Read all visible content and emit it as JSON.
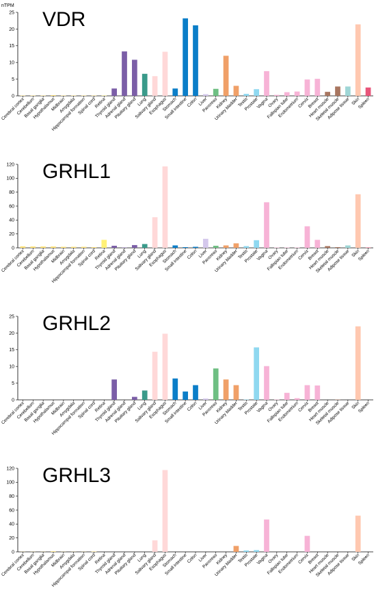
{
  "chart_data": [
    {
      "type": "bar",
      "title": "VDR",
      "ylabel": "nTPM",
      "ylim": [
        0,
        25
      ],
      "yticks": [
        0,
        5,
        10,
        15,
        20,
        25
      ],
      "grid": false,
      "categories": [
        "Cerebral cortex",
        "Cerebellum",
        "Basal ganglia",
        "Hypothalamus",
        "Midbrain",
        "Amygdala",
        "Hippocampal formation",
        "Spinal cord",
        "Retina",
        "Thyroid gland",
        "Adrenal gland",
        "Pituitary gland",
        "Lung",
        "Salivary gland",
        "Esophagus",
        "Stomach",
        "Small intestine",
        "Colon",
        "Liver",
        "Pancreas",
        "Kidney",
        "Urinary bladder",
        "Testis",
        "Prostate",
        "Vagina",
        "Ovary",
        "Fallopian tube",
        "Endometrium",
        "Cervix",
        "Breast",
        "Heart muscle",
        "Skeletal muscle",
        "Adipose tissue",
        "Skin",
        "Spleen"
      ],
      "values": [
        0.1,
        0.1,
        0.1,
        0.2,
        0.1,
        0.1,
        0.1,
        0.1,
        0.1,
        2.2,
        13.3,
        10.8,
        6.6,
        5.9,
        13.2,
        2.2,
        23.2,
        21.1,
        0.5,
        2.1,
        12.0,
        3.0,
        0.6,
        2.0,
        7.4,
        0.3,
        1.1,
        1.3,
        4.9,
        5.1,
        1.2,
        2.8,
        2.8,
        21.4,
        2.5
      ],
      "colors": [
        "#ffe27a",
        "#ffe27a",
        "#ffe27a",
        "#ffe27a",
        "#ffe27a",
        "#ffe27a",
        "#ffe27a",
        "#ffe27a",
        "#fff176",
        "#7b5ea7",
        "#7b5ea7",
        "#7b5ea7",
        "#3a9a8a",
        "#ffd8d8",
        "#ffd8d8",
        "#0b7ec8",
        "#0b7ec8",
        "#0b7ec8",
        "#d4c8ec",
        "#6fbf83",
        "#f0a068",
        "#f0a068",
        "#8fd8f0",
        "#8fd8f0",
        "#f7b3d6",
        "#f7b3d6",
        "#f7b3d6",
        "#f7b3d6",
        "#f7b3d6",
        "#f7b3d6",
        "#a87660",
        "#a87660",
        "#9fd6d6",
        "#ffc8b0",
        "#e8557a"
      ]
    },
    {
      "type": "bar",
      "title": "GRHL1",
      "ylabel": "",
      "ylim": [
        0,
        120
      ],
      "yticks": [
        0,
        20,
        40,
        60,
        80,
        100,
        120
      ],
      "grid": false,
      "categories": [
        "Cerebral cortex",
        "Cerebellum",
        "Basal ganglia",
        "Hypothalamus",
        "Midbrain",
        "Amygdala",
        "Hippocampal formation",
        "Spinal cord",
        "Retina",
        "Thyroid gland",
        "Adrenal gland",
        "Pituitary gland",
        "Lung",
        "Salivary gland",
        "Esophagus",
        "Stomach",
        "Small intestine",
        "Colon",
        "Liver",
        "Pancreas",
        "Kidney",
        "Urinary bladder",
        "Testis",
        "Prostate",
        "Vagina",
        "Ovary",
        "Fallopian tube",
        "Endometrium",
        "Cervix",
        "Breast",
        "Heart muscle",
        "Skeletal muscle",
        "Adipose tissue",
        "Skin",
        "Spleen"
      ],
      "values": [
        2.2,
        2.0,
        2.0,
        2.0,
        1.5,
        1.5,
        1.5,
        1.0,
        11.5,
        3.0,
        0.5,
        4.0,
        5.5,
        44.0,
        117.0,
        3.5,
        1.0,
        1.5,
        13.0,
        3.0,
        3.5,
        6.5,
        2.5,
        11.0,
        65.5,
        0.5,
        0.5,
        0.5,
        31.0,
        11.5,
        2.5,
        1.0,
        3.5,
        77.0,
        0.5
      ],
      "colors": [
        "#ffe27a",
        "#ffe27a",
        "#ffe27a",
        "#ffe27a",
        "#ffe27a",
        "#ffe27a",
        "#ffe27a",
        "#ffe27a",
        "#fff176",
        "#7b5ea7",
        "#7b5ea7",
        "#7b5ea7",
        "#3a9a8a",
        "#ffd8d8",
        "#ffd8d8",
        "#0b7ec8",
        "#0b7ec8",
        "#0b7ec8",
        "#d4c8ec",
        "#6fbf83",
        "#f0a068",
        "#f0a068",
        "#8fd8f0",
        "#8fd8f0",
        "#f7b3d6",
        "#f7b3d6",
        "#f7b3d6",
        "#f7b3d6",
        "#f7b3d6",
        "#f7b3d6",
        "#a87660",
        "#a87660",
        "#9fd6d6",
        "#ffc8b0",
        "#e8557a"
      ]
    },
    {
      "type": "bar",
      "title": "GRHL2",
      "ylabel": "",
      "ylim": [
        0,
        25
      ],
      "yticks": [
        0,
        5,
        10,
        15,
        20,
        25
      ],
      "grid": false,
      "categories": [
        "Cerebral cortex",
        "Cerebellum",
        "Basal ganglia",
        "Hypothalamus",
        "Midbrain",
        "Amygdala",
        "Hippocampal formation",
        "Spinal cord",
        "Retina",
        "Thyroid gland",
        "Adrenal gland",
        "Pituitary gland",
        "Lung",
        "Salivary gland",
        "Esophagus",
        "Stomach",
        "Small intestine",
        "Colon",
        "Liver",
        "Pancreas",
        "Kidney",
        "Urinary bladder",
        "Testis",
        "Prostate",
        "Vagina",
        "Ovary",
        "Fallopian tube",
        "Endometrium",
        "Cervix",
        "Breast",
        "Heart muscle",
        "Skeletal muscle",
        "Adipose tissue",
        "Skin",
        "Spleen"
      ],
      "values": [
        0,
        0,
        0,
        0,
        0,
        0,
        0,
        0,
        0,
        6.1,
        0,
        0.9,
        2.8,
        14.4,
        19.8,
        6.4,
        2.5,
        4.4,
        0.4,
        9.4,
        6.1,
        4.4,
        0.1,
        15.7,
        10.1,
        0.1,
        2.1,
        0.5,
        4.4,
        4.3,
        0,
        0.1,
        0,
        22.0,
        0
      ],
      "colors": [
        "#ffe27a",
        "#ffe27a",
        "#ffe27a",
        "#ffe27a",
        "#ffe27a",
        "#ffe27a",
        "#ffe27a",
        "#ffe27a",
        "#fff176",
        "#7b5ea7",
        "#7b5ea7",
        "#7b5ea7",
        "#3a9a8a",
        "#ffd8d8",
        "#ffd8d8",
        "#0b7ec8",
        "#0b7ec8",
        "#0b7ec8",
        "#d4c8ec",
        "#6fbf83",
        "#f0a068",
        "#f0a068",
        "#8fd8f0",
        "#8fd8f0",
        "#f7b3d6",
        "#f7b3d6",
        "#f7b3d6",
        "#f7b3d6",
        "#f7b3d6",
        "#f7b3d6",
        "#a87660",
        "#a87660",
        "#9fd6d6",
        "#ffc8b0",
        "#e8557a"
      ]
    },
    {
      "type": "bar",
      "title": "GRHL3",
      "ylabel": "",
      "ylim": [
        0,
        120
      ],
      "yticks": [
        0,
        20,
        40,
        60,
        80,
        100,
        120
      ],
      "grid": false,
      "categories": [
        "Cerebral cortex",
        "Cerebellum",
        "Basal ganglia",
        "Hypothalamus",
        "Midbrain",
        "Amygdala",
        "Hippocampal formation",
        "Spinal cord",
        "Retina",
        "Thyroid gland",
        "Adrenal gland",
        "Pituitary gland",
        "Lung",
        "Salivary gland",
        "Esophagus",
        "Stomach",
        "Small intestine",
        "Colon",
        "Liver",
        "Pancreas",
        "Kidney",
        "Urinary bladder",
        "Testis",
        "Prostate",
        "Vagina",
        "Ovary",
        "Fallopian tube",
        "Endometrium",
        "Cervix",
        "Breast",
        "Heart muscle",
        "Skeletal muscle",
        "Adipose tissue",
        "Skin",
        "Spleen"
      ],
      "values": [
        0.2,
        0.2,
        0.2,
        0.8,
        0.2,
        0.2,
        0.2,
        0.5,
        0,
        0,
        0,
        0,
        0,
        16.5,
        117.5,
        0,
        0,
        0,
        0,
        0,
        0,
        8.5,
        2.0,
        2.5,
        46.5,
        0,
        0,
        0,
        23.0,
        0,
        0,
        0,
        0,
        52.0,
        0
      ],
      "colors": [
        "#ffe27a",
        "#ffe27a",
        "#ffe27a",
        "#ffe27a",
        "#ffe27a",
        "#ffe27a",
        "#ffe27a",
        "#ffe27a",
        "#fff176",
        "#7b5ea7",
        "#7b5ea7",
        "#7b5ea7",
        "#3a9a8a",
        "#ffd8d8",
        "#ffd8d8",
        "#0b7ec8",
        "#0b7ec8",
        "#0b7ec8",
        "#d4c8ec",
        "#6fbf83",
        "#f0a068",
        "#f0a068",
        "#8fd8f0",
        "#8fd8f0",
        "#f7b3d6",
        "#f7b3d6",
        "#f7b3d6",
        "#f7b3d6",
        "#f7b3d6",
        "#f7b3d6",
        "#a87660",
        "#a87660",
        "#9fd6d6",
        "#ffc8b0",
        "#e8557a"
      ]
    }
  ]
}
